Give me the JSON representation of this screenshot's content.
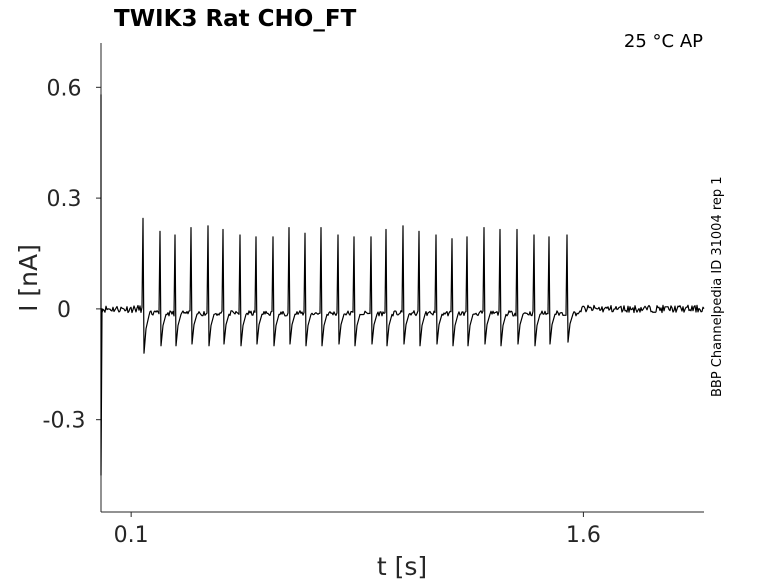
{
  "chart_data": {
    "type": "line",
    "title": "TWIK3  Rat  CHO_FT",
    "condition_label": "25 °C  AP",
    "side_label": "BBP Channelpedia ID 31004 rep 1",
    "xlabel": "t [s]",
    "ylabel": "I [nA]",
    "xlim": [
      0.0,
      2.0
    ],
    "ylim": [
      -0.55,
      0.72
    ],
    "x_ticks": [
      {
        "value": 0.1,
        "label": "0.1"
      },
      {
        "value": 1.6,
        "label": "1.6"
      }
    ],
    "y_ticks": [
      {
        "value": 0.6,
        "label": "0.6"
      },
      {
        "value": 0.3,
        "label": "0.3"
      },
      {
        "value": 0,
        "label": "0"
      },
      {
        "value": -0.3,
        "label": "-0.3"
      }
    ],
    "grid": false,
    "series": [
      {
        "baseline": 0.0,
        "stim_onset_transient": {
          "t": 0.0,
          "max": 0.58,
          "min": -0.45
        },
        "stim_window": [
          0.14,
          1.59
        ],
        "spikes": [
          {
            "t": 0.14,
            "peak": 0.245,
            "trough": -0.12
          },
          {
            "t": 0.195,
            "peak": 0.21,
            "trough": -0.1
          },
          {
            "t": 0.245,
            "peak": 0.2,
            "trough": -0.1
          },
          {
            "t": 0.3,
            "peak": 0.22,
            "trough": -0.095
          },
          {
            "t": 0.355,
            "peak": 0.225,
            "trough": -0.1
          },
          {
            "t": 0.405,
            "peak": 0.215,
            "trough": -0.095
          },
          {
            "t": 0.46,
            "peak": 0.2,
            "trough": -0.1
          },
          {
            "t": 0.515,
            "peak": 0.195,
            "trough": -0.095
          },
          {
            "t": 0.57,
            "peak": 0.195,
            "trough": -0.1
          },
          {
            "t": 0.625,
            "peak": 0.22,
            "trough": -0.095
          },
          {
            "t": 0.675,
            "peak": 0.205,
            "trough": -0.1
          },
          {
            "t": 0.73,
            "peak": 0.22,
            "trough": -0.1
          },
          {
            "t": 0.785,
            "peak": 0.2,
            "trough": -0.095
          },
          {
            "t": 0.84,
            "peak": 0.195,
            "trough": -0.1
          },
          {
            "t": 0.895,
            "peak": 0.195,
            "trough": -0.095
          },
          {
            "t": 0.945,
            "peak": 0.215,
            "trough": -0.1
          },
          {
            "t": 1.0,
            "peak": 0.225,
            "trough": -0.095
          },
          {
            "t": 1.055,
            "peak": 0.21,
            "trough": -0.1
          },
          {
            "t": 1.11,
            "peak": 0.2,
            "trough": -0.095
          },
          {
            "t": 1.165,
            "peak": 0.19,
            "trough": -0.1
          },
          {
            "t": 1.215,
            "peak": 0.195,
            "trough": -0.1
          },
          {
            "t": 1.27,
            "peak": 0.22,
            "trough": -0.095
          },
          {
            "t": 1.325,
            "peak": 0.215,
            "trough": -0.1
          },
          {
            "t": 1.38,
            "peak": 0.215,
            "trough": -0.095
          },
          {
            "t": 1.435,
            "peak": 0.2,
            "trough": -0.1
          },
          {
            "t": 1.485,
            "peak": 0.195,
            "trough": -0.095
          },
          {
            "t": 1.545,
            "peak": 0.2,
            "trough": -0.09
          }
        ]
      }
    ]
  }
}
